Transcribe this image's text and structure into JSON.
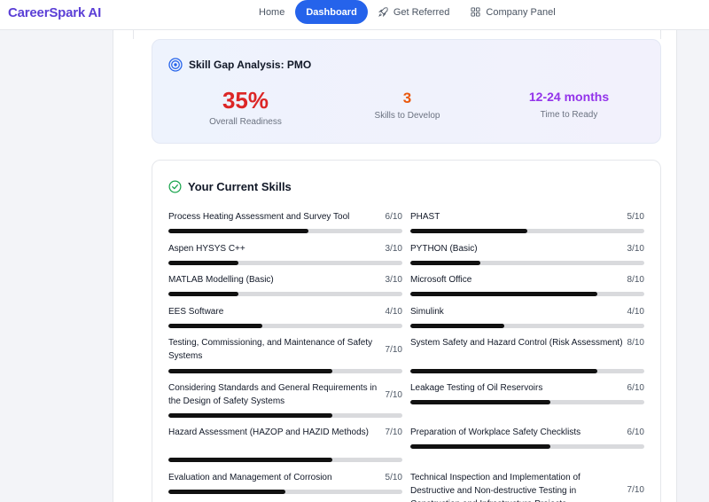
{
  "app": {
    "logo": "CareerSpark AI"
  },
  "nav": {
    "home": "Home",
    "dashboard": "Dashboard",
    "get_referred": "Get Referred",
    "company_panel": "Company Panel"
  },
  "gap": {
    "title": "Skill Gap Analysis: PMO",
    "readiness_value": "35%",
    "readiness_label": "Overall Readiness",
    "skills_value": "3",
    "skills_label": "Skills to Develop",
    "time_value": "12-24 months",
    "time_label": "Time to Ready"
  },
  "skills_section": {
    "title": "Your Current Skills",
    "left": [
      {
        "name": "Process Heating Assessment and Survey Tool",
        "score": "6/10",
        "level": 0.6
      },
      {
        "name": "Aspen HYSYS C++",
        "score": "3/10",
        "level": 0.3
      },
      {
        "name": "MATLAB Modelling (Basic)",
        "score": "3/10",
        "level": 0.3
      },
      {
        "name": "EES Software",
        "score": "4/10",
        "level": 0.4
      },
      {
        "name": "Testing, Commissioning, and Maintenance of Safety Systems",
        "score": "7/10",
        "level": 0.7
      },
      {
        "name": "Considering Standards and General Requirements in the Design of Safety Systems",
        "score": "7/10",
        "level": 0.7
      },
      {
        "name": "Hazard Assessment (HAZOP and HAZID Methods)",
        "score": "7/10",
        "level": 0.7
      },
      {
        "name": "Evaluation and Management of Corrosion",
        "score": "5/10",
        "level": 0.5
      }
    ],
    "right": [
      {
        "name": "PHAST",
        "score": "5/10",
        "level": 0.5
      },
      {
        "name": "PYTHON (Basic)",
        "score": "3/10",
        "level": 0.3
      },
      {
        "name": "Microsoft Office",
        "score": "8/10",
        "level": 0.8
      },
      {
        "name": "Simulink",
        "score": "4/10",
        "level": 0.4
      },
      {
        "name": "System Safety and Hazard Control (Risk Assessment)",
        "score": "8/10",
        "level": 0.8
      },
      {
        "name": "Leakage Testing of Oil Reservoirs",
        "score": "6/10",
        "level": 0.6
      },
      {
        "name": "Preparation of Workplace Safety Checklists",
        "score": "6/10",
        "level": 0.6
      },
      {
        "name": "Technical Inspection and Implementation of Destructive and Non-destructive Testing in Construction and Infrastructure Projects",
        "score": "7/10",
        "level": 0.7
      }
    ]
  },
  "colors": {
    "brand": "#5b3fd6",
    "nav_active": "#2563eb",
    "readiness": "#dc2626",
    "skills_to_develop": "#ea580c",
    "time_to_ready": "#9333ea",
    "bar_fill": "#111111",
    "bar_track": "#d9dadd"
  },
  "icons": {
    "get_referred": "rocket-icon",
    "company_panel": "grid-icon",
    "gap_title": "target-icon",
    "skills_title": "check-circle-icon"
  }
}
